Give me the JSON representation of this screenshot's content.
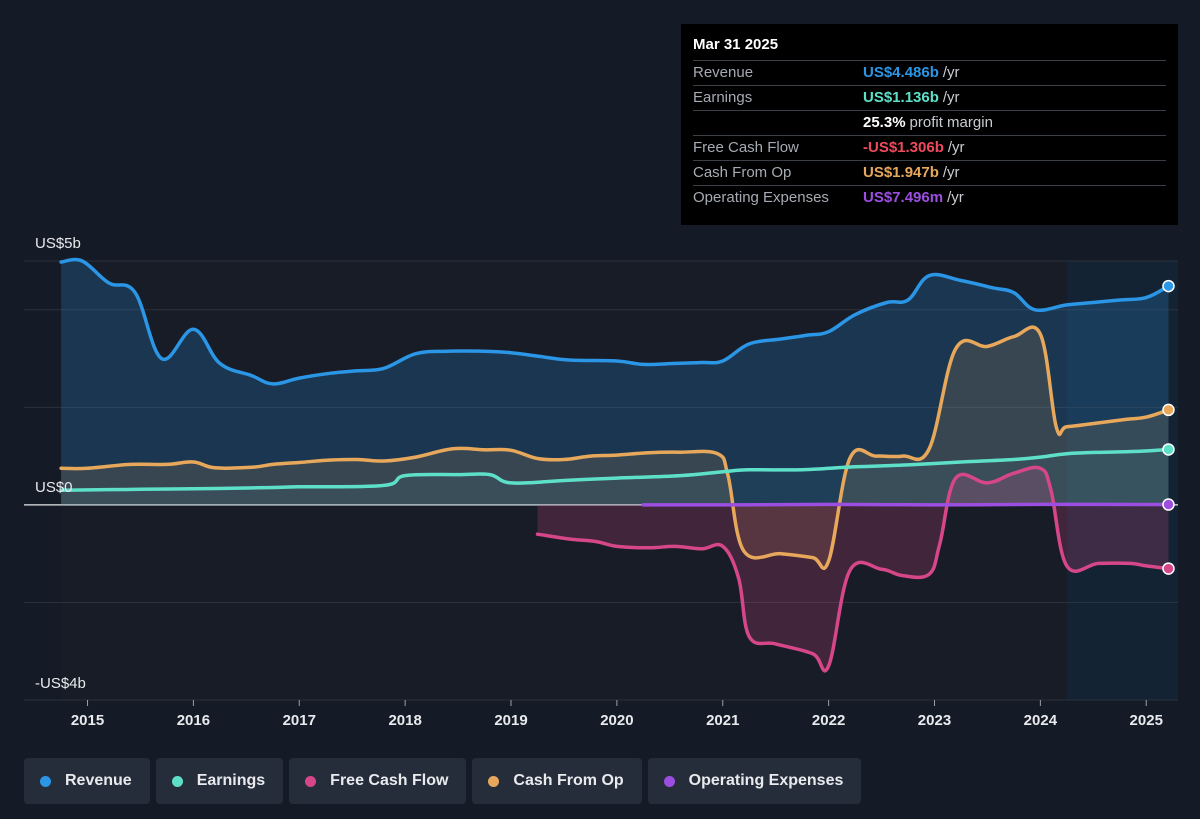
{
  "chart_data": {
    "type": "area",
    "title": "",
    "y_tick_labels": {
      "top": "US$5b",
      "zero": "US$0",
      "bottom": "-US$4b"
    },
    "ylim": [
      -4,
      5
    ],
    "xlim": [
      2014.4,
      2025.3
    ],
    "x_ticks": [
      "2015",
      "2016",
      "2017",
      "2018",
      "2019",
      "2020",
      "2021",
      "2022",
      "2023",
      "2024",
      "2025"
    ],
    "highlight_start": 2024.25,
    "series": [
      {
        "name": "Revenue",
        "color": "#2b95e6",
        "points": [
          [
            2014.75,
            4.98
          ],
          [
            2014.95,
            5.0
          ],
          [
            2015.2,
            4.55
          ],
          [
            2015.45,
            4.35
          ],
          [
            2015.7,
            3.0
          ],
          [
            2016.0,
            3.6
          ],
          [
            2016.25,
            2.9
          ],
          [
            2016.55,
            2.65
          ],
          [
            2016.75,
            2.48
          ],
          [
            2017.0,
            2.6
          ],
          [
            2017.3,
            2.7
          ],
          [
            2017.55,
            2.75
          ],
          [
            2017.8,
            2.8
          ],
          [
            2018.1,
            3.1
          ],
          [
            2018.4,
            3.15
          ],
          [
            2018.75,
            3.15
          ],
          [
            2019.0,
            3.12
          ],
          [
            2019.25,
            3.05
          ],
          [
            2019.55,
            2.97
          ],
          [
            2020.0,
            2.95
          ],
          [
            2020.25,
            2.88
          ],
          [
            2020.55,
            2.9
          ],
          [
            2020.8,
            2.92
          ],
          [
            2021.0,
            2.95
          ],
          [
            2021.25,
            3.3
          ],
          [
            2021.55,
            3.4
          ],
          [
            2021.8,
            3.48
          ],
          [
            2022.0,
            3.55
          ],
          [
            2022.25,
            3.9
          ],
          [
            2022.55,
            4.15
          ],
          [
            2022.75,
            4.2
          ],
          [
            2022.95,
            4.7
          ],
          [
            2023.25,
            4.6
          ],
          [
            2023.55,
            4.45
          ],
          [
            2023.75,
            4.35
          ],
          [
            2023.95,
            4.0
          ],
          [
            2024.25,
            4.1
          ],
          [
            2024.5,
            4.15
          ],
          [
            2024.75,
            4.2
          ],
          [
            2025.0,
            4.25
          ],
          [
            2025.21,
            4.486
          ]
        ]
      },
      {
        "name": "Earnings",
        "color": "#5ee0c8",
        "points": [
          [
            2014.75,
            0.3
          ],
          [
            2015.5,
            0.32
          ],
          [
            2016.0,
            0.33
          ],
          [
            2016.6,
            0.35
          ],
          [
            2017.0,
            0.37
          ],
          [
            2017.8,
            0.4
          ],
          [
            2018.0,
            0.6
          ],
          [
            2018.5,
            0.62
          ],
          [
            2018.8,
            0.62
          ],
          [
            2019.0,
            0.45
          ],
          [
            2019.5,
            0.5
          ],
          [
            2020.0,
            0.55
          ],
          [
            2020.6,
            0.6
          ],
          [
            2021.0,
            0.68
          ],
          [
            2021.25,
            0.72
          ],
          [
            2021.75,
            0.72
          ],
          [
            2022.25,
            0.78
          ],
          [
            2022.75,
            0.82
          ],
          [
            2023.25,
            0.88
          ],
          [
            2023.75,
            0.93
          ],
          [
            2024.0,
            0.98
          ],
          [
            2024.25,
            1.05
          ],
          [
            2024.6,
            1.08
          ],
          [
            2024.95,
            1.1
          ],
          [
            2025.21,
            1.136
          ]
        ]
      },
      {
        "name": "Free Cash Flow",
        "color": "#d6478a",
        "points": [
          [
            2019.25,
            -0.6
          ],
          [
            2019.55,
            -0.7
          ],
          [
            2019.8,
            -0.75
          ],
          [
            2020.0,
            -0.85
          ],
          [
            2020.3,
            -0.88
          ],
          [
            2020.55,
            -0.85
          ],
          [
            2020.8,
            -0.9
          ],
          [
            2021.0,
            -0.85
          ],
          [
            2021.15,
            -1.5
          ],
          [
            2021.25,
            -2.7
          ],
          [
            2021.5,
            -2.85
          ],
          [
            2021.85,
            -3.05
          ],
          [
            2022.0,
            -3.3
          ],
          [
            2022.2,
            -1.35
          ],
          [
            2022.5,
            -1.32
          ],
          [
            2022.7,
            -1.45
          ],
          [
            2022.95,
            -1.42
          ],
          [
            2023.05,
            -0.8
          ],
          [
            2023.2,
            0.55
          ],
          [
            2023.5,
            0.45
          ],
          [
            2023.75,
            0.65
          ],
          [
            2024.0,
            0.75
          ],
          [
            2024.1,
            0.3
          ],
          [
            2024.25,
            -1.25
          ],
          [
            2024.55,
            -1.2
          ],
          [
            2024.85,
            -1.2
          ],
          [
            2025.0,
            -1.25
          ],
          [
            2025.21,
            -1.306
          ]
        ]
      },
      {
        "name": "Cash From Op",
        "color": "#e8a85c",
        "points": [
          [
            2014.75,
            0.75
          ],
          [
            2015.0,
            0.75
          ],
          [
            2015.4,
            0.83
          ],
          [
            2015.75,
            0.83
          ],
          [
            2016.0,
            0.88
          ],
          [
            2016.2,
            0.76
          ],
          [
            2016.55,
            0.77
          ],
          [
            2016.75,
            0.83
          ],
          [
            2017.0,
            0.87
          ],
          [
            2017.3,
            0.92
          ],
          [
            2017.55,
            0.93
          ],
          [
            2017.8,
            0.9
          ],
          [
            2018.1,
            0.98
          ],
          [
            2018.45,
            1.15
          ],
          [
            2018.75,
            1.13
          ],
          [
            2019.0,
            1.12
          ],
          [
            2019.25,
            0.95
          ],
          [
            2019.5,
            0.93
          ],
          [
            2019.75,
            1.0
          ],
          [
            2020.0,
            1.02
          ],
          [
            2020.3,
            1.07
          ],
          [
            2020.6,
            1.08
          ],
          [
            2020.95,
            1.05
          ],
          [
            2021.05,
            0.6
          ],
          [
            2021.2,
            -0.95
          ],
          [
            2021.55,
            -1.0
          ],
          [
            2021.85,
            -1.08
          ],
          [
            2022.0,
            -1.15
          ],
          [
            2022.2,
            0.95
          ],
          [
            2022.45,
            1.0
          ],
          [
            2022.7,
            1.0
          ],
          [
            2022.95,
            1.15
          ],
          [
            2023.2,
            3.2
          ],
          [
            2023.5,
            3.25
          ],
          [
            2023.75,
            3.45
          ],
          [
            2024.0,
            3.5
          ],
          [
            2024.15,
            1.6
          ],
          [
            2024.25,
            1.6
          ],
          [
            2024.55,
            1.68
          ],
          [
            2024.8,
            1.75
          ],
          [
            2025.0,
            1.8
          ],
          [
            2025.21,
            1.947
          ]
        ]
      },
      {
        "name": "Operating Expenses",
        "color": "#9b4ee0",
        "points": [
          [
            2020.25,
            0.0
          ],
          [
            2021.0,
            0.0
          ],
          [
            2022.0,
            0.01
          ],
          [
            2023.0,
            0.0
          ],
          [
            2024.0,
            0.01
          ],
          [
            2025.21,
            0.0075
          ]
        ]
      }
    ]
  },
  "tooltip": {
    "date": "Mar 31 2025",
    "rows": [
      {
        "label": "Revenue",
        "value": "US$4.486b",
        "unit": "/yr",
        "color": "#2b95e6"
      },
      {
        "label": "Earnings",
        "value": "US$1.136b",
        "unit": "/yr",
        "color": "#5ee0c8"
      },
      {
        "label": "",
        "value": "25.3%",
        "unit": "profit margin",
        "color": "#ffffff"
      },
      {
        "label": "Free Cash Flow",
        "value": "-US$1.306b",
        "unit": "/yr",
        "color": "#ef4a5b"
      },
      {
        "label": "Cash From Op",
        "value": "US$1.947b",
        "unit": "/yr",
        "color": "#e8a85c"
      },
      {
        "label": "Operating Expenses",
        "value": "US$7.496m",
        "unit": "/yr",
        "color": "#9b4ee0"
      }
    ]
  },
  "legend": [
    {
      "label": "Revenue",
      "color": "#2b95e6"
    },
    {
      "label": "Earnings",
      "color": "#5ee0c8"
    },
    {
      "label": "Free Cash Flow",
      "color": "#d6478a"
    },
    {
      "label": "Cash From Op",
      "color": "#e8a85c"
    },
    {
      "label": "Operating Expenses",
      "color": "#9b4ee0"
    }
  ]
}
